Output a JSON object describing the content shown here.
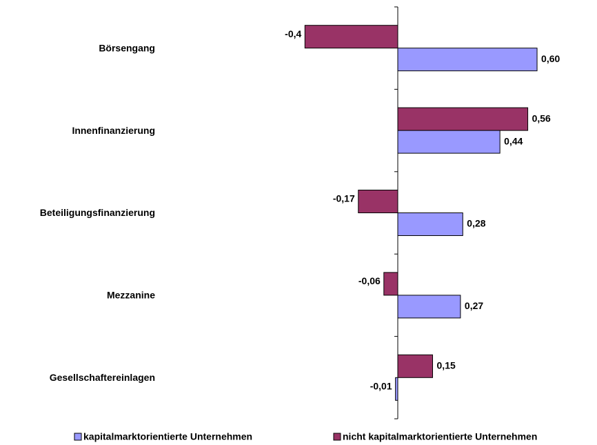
{
  "chart_data": {
    "type": "barh",
    "categories": [
      "Börsengang",
      "Innenfinanzierung",
      "Beteiligungsfinanzierung",
      "Mezzanine",
      "Gesellschaftereinlagen"
    ],
    "series": [
      {
        "name": "kapitalmarktorientierte Unternehmen",
        "color": "#9999ff",
        "values": [
          0.6,
          0.44,
          0.28,
          0.27,
          -0.01
        ],
        "value_labels": [
          "0,60",
          "0,44",
          "0,28",
          "0,27",
          "-0,01"
        ]
      },
      {
        "name": "nicht kapitalmarktorientierte Unternehmen",
        "color": "#993366",
        "values": [
          -0.4,
          0.56,
          -0.17,
          -0.06,
          0.15
        ],
        "value_labels": [
          "-0,4",
          "0,56",
          "-0,17",
          "-0,06",
          "0,15"
        ]
      }
    ],
    "xlim": [
      -0.55,
      0.8
    ],
    "legend": "bottom"
  }
}
